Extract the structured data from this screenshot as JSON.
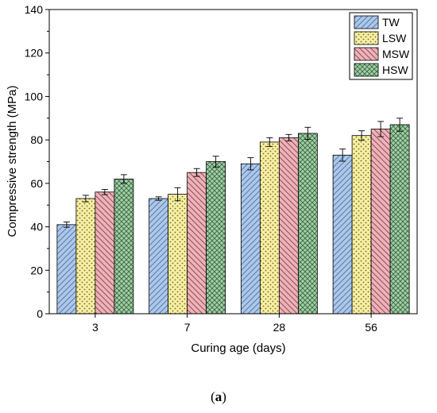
{
  "chart_data": {
    "type": "bar",
    "title": "",
    "xlabel": "Curing age (days)",
    "ylabel": "Compressive strength (MPa)",
    "ylim": [
      0,
      140
    ],
    "yticks": [
      0,
      20,
      40,
      60,
      80,
      100,
      120,
      140
    ],
    "categories": [
      "3",
      "7",
      "28",
      "56"
    ],
    "series": [
      {
        "name": "TW",
        "values": [
          41,
          53,
          69,
          73
        ],
        "errors": [
          1.2,
          0.8,
          2.8,
          2.8
        ],
        "color": "#aac8ee",
        "pattern": "diagonal-hatch"
      },
      {
        "name": "LSW",
        "values": [
          53,
          55,
          79,
          82
        ],
        "errors": [
          1.5,
          3.0,
          2.0,
          2.2
        ],
        "color": "#f7ef9e",
        "pattern": "dots"
      },
      {
        "name": "MSW",
        "values": [
          56,
          65,
          81,
          85
        ],
        "errors": [
          1.2,
          1.8,
          1.5,
          3.5
        ],
        "color": "#f2b0b8",
        "pattern": "back-diagonal-hatch"
      },
      {
        "name": "HSW",
        "values": [
          62,
          70,
          83,
          87
        ],
        "errors": [
          2.0,
          2.5,
          2.8,
          3.0
        ],
        "color": "#9ed0a4",
        "pattern": "crosshatch"
      }
    ],
    "legend": "top-right",
    "grid": false
  },
  "panel_label": {
    "open": "(",
    "letter": "a",
    "close": ")"
  }
}
